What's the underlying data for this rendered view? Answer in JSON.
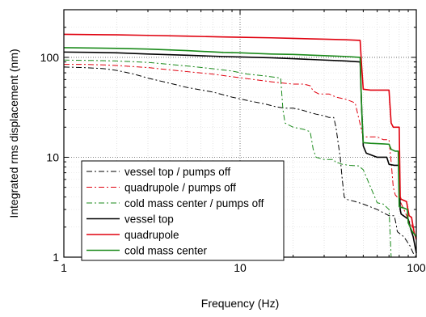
{
  "chart_data": {
    "type": "line",
    "xlabel": "Frequency (Hz)",
    "ylabel": "Integrated rms displacement (nm)",
    "x_scale": "log",
    "y_scale": "log",
    "xlim": [
      1,
      100
    ],
    "ylim": [
      1,
      300
    ],
    "x_ticks": [
      {
        "value": 1,
        "label": "1"
      },
      {
        "value": 10,
        "label": "10"
      },
      {
        "value": 100,
        "label": "100"
      }
    ],
    "y_ticks": [
      {
        "value": 1,
        "label": "1"
      },
      {
        "value": 10,
        "label": "10"
      },
      {
        "value": 100,
        "label": "100"
      }
    ],
    "grid": "dotted lines at 10 and 100 on each axis; lighter minor grid",
    "legend_position": "bottom-left",
    "series": [
      {
        "name": "vessel top / pumps off",
        "color": "#000000",
        "dash": "dashdot",
        "width": 1,
        "points": [
          [
            1,
            80
          ],
          [
            1.3,
            79
          ],
          [
            1.7,
            77
          ],
          [
            2,
            74
          ],
          [
            2.5,
            68
          ],
          [
            3,
            62
          ],
          [
            4,
            55
          ],
          [
            5,
            50
          ],
          [
            7,
            45
          ],
          [
            9,
            40
          ],
          [
            11,
            37
          ],
          [
            14,
            34
          ],
          [
            16,
            32
          ],
          [
            18,
            31
          ],
          [
            20,
            31
          ],
          [
            22,
            30
          ],
          [
            25,
            28
          ],
          [
            27,
            27
          ],
          [
            30,
            26
          ],
          [
            32,
            25
          ],
          [
            34,
            25
          ],
          [
            35,
            20
          ],
          [
            36,
            14
          ],
          [
            37,
            10
          ],
          [
            38,
            6
          ],
          [
            39,
            4
          ],
          [
            40,
            3.8
          ],
          [
            45,
            3.6
          ],
          [
            50,
            3.4
          ],
          [
            60,
            3
          ],
          [
            70,
            2.6
          ],
          [
            75,
            2.6
          ],
          [
            77,
            2.1
          ],
          [
            78,
            1.8
          ],
          [
            85,
            1.6
          ],
          [
            92,
            1.3
          ],
          [
            96,
            1.1
          ],
          [
            100,
            1
          ]
        ]
      },
      {
        "name": "quadrupole / pumps off",
        "color": "#e0000e",
        "dash": "dashdot",
        "width": 1,
        "points": [
          [
            1,
            85
          ],
          [
            1.3,
            85
          ],
          [
            1.7,
            84
          ],
          [
            2,
            83
          ],
          [
            3,
            79
          ],
          [
            4,
            75
          ],
          [
            5,
            72
          ],
          [
            7,
            68
          ],
          [
            9,
            64
          ],
          [
            12,
            60
          ],
          [
            15,
            57
          ],
          [
            18,
            55
          ],
          [
            20,
            54
          ],
          [
            23,
            54
          ],
          [
            25,
            52
          ],
          [
            26,
            46
          ],
          [
            28,
            43
          ],
          [
            32,
            43
          ],
          [
            35,
            40
          ],
          [
            40,
            38
          ],
          [
            45,
            35
          ],
          [
            47,
            25
          ],
          [
            50,
            16
          ],
          [
            60,
            16
          ],
          [
            65,
            15
          ],
          [
            70,
            15
          ],
          [
            72,
            9
          ],
          [
            74,
            5
          ],
          [
            76,
            4.2
          ],
          [
            80,
            3.8
          ],
          [
            85,
            3
          ],
          [
            90,
            2.4
          ],
          [
            95,
            2
          ],
          [
            100,
            1.8
          ]
        ]
      },
      {
        "name": "cold mass center / pumps off",
        "color": "#1a8a1a",
        "dash": "dashdot",
        "width": 1,
        "points": [
          [
            1,
            94
          ],
          [
            1.5,
            93
          ],
          [
            2,
            92
          ],
          [
            3,
            89
          ],
          [
            4,
            85
          ],
          [
            5,
            82
          ],
          [
            7,
            77
          ],
          [
            9,
            73
          ],
          [
            11,
            68
          ],
          [
            14,
            65
          ],
          [
            16,
            63
          ],
          [
            17,
            62
          ],
          [
            17.5,
            30
          ],
          [
            18,
            22
          ],
          [
            20,
            20
          ],
          [
            23,
            19
          ],
          [
            25,
            18
          ],
          [
            26,
            12
          ],
          [
            27,
            10
          ],
          [
            30,
            9.5
          ],
          [
            34,
            9.5
          ],
          [
            35,
            8.8
          ],
          [
            36,
            8.8
          ],
          [
            38,
            8.5
          ],
          [
            42,
            8.3
          ],
          [
            47,
            8.2
          ],
          [
            50,
            7.5
          ],
          [
            60,
            3.5
          ],
          [
            65,
            3.4
          ],
          [
            70,
            3
          ],
          [
            71,
            1.8
          ],
          [
            72,
            1
          ]
        ]
      },
      {
        "name": "vessel top",
        "color": "#000000",
        "dash": "solid",
        "width": 1.6,
        "points": [
          [
            1,
            113
          ],
          [
            1.5,
            112
          ],
          [
            2,
            111
          ],
          [
            3,
            108
          ],
          [
            5,
            105
          ],
          [
            8,
            102
          ],
          [
            10,
            101
          ],
          [
            15,
            99
          ],
          [
            20,
            97
          ],
          [
            30,
            94
          ],
          [
            40,
            92
          ],
          [
            48,
            90
          ],
          [
            49,
            30
          ],
          [
            50,
            13
          ],
          [
            52,
            11
          ],
          [
            60,
            10
          ],
          [
            68,
            10
          ],
          [
            70,
            8.5
          ],
          [
            75,
            8.3
          ],
          [
            80,
            8.3
          ],
          [
            81,
            3
          ],
          [
            82,
            2.7
          ],
          [
            90,
            2.4
          ],
          [
            93,
            1.9
          ],
          [
            96,
            1.6
          ],
          [
            100,
            1.1
          ]
        ]
      },
      {
        "name": "quadrupole",
        "color": "#e0000e",
        "dash": "solid",
        "width": 1.6,
        "points": [
          [
            1,
            170
          ],
          [
            2,
            168
          ],
          [
            3,
            166
          ],
          [
            5,
            163
          ],
          [
            8,
            160
          ],
          [
            10,
            159
          ],
          [
            15,
            157
          ],
          [
            20,
            155
          ],
          [
            30,
            152
          ],
          [
            40,
            150
          ],
          [
            48,
            148
          ],
          [
            49,
            80
          ],
          [
            50,
            48
          ],
          [
            55,
            47
          ],
          [
            65,
            47
          ],
          [
            70,
            47
          ],
          [
            72,
            22
          ],
          [
            74,
            20
          ],
          [
            80,
            20
          ],
          [
            81,
            4
          ],
          [
            82,
            3.8
          ],
          [
            88,
            3.6
          ],
          [
            91,
            2.6
          ],
          [
            94,
            2.5
          ],
          [
            97,
            1.8
          ],
          [
            100,
            1.5
          ]
        ]
      },
      {
        "name": "cold mass center",
        "color": "#1a8a1a",
        "dash": "solid",
        "width": 1.6,
        "points": [
          [
            1,
            125
          ],
          [
            2,
            123
          ],
          [
            3,
            121
          ],
          [
            5,
            117
          ],
          [
            8,
            112
          ],
          [
            10,
            111
          ],
          [
            15,
            108
          ],
          [
            20,
            107
          ],
          [
            30,
            104
          ],
          [
            40,
            102
          ],
          [
            48,
            100
          ],
          [
            49,
            30
          ],
          [
            50,
            14
          ],
          [
            55,
            13.8
          ],
          [
            65,
            13.6
          ],
          [
            70,
            13.5
          ],
          [
            72,
            12
          ],
          [
            76,
            11.5
          ],
          [
            79,
            11.5
          ],
          [
            80,
            3.2
          ],
          [
            85,
            3.1
          ],
          [
            89,
            3
          ],
          [
            90,
            2.2
          ],
          [
            95,
            1.8
          ],
          [
            100,
            1.6
          ]
        ]
      }
    ]
  }
}
